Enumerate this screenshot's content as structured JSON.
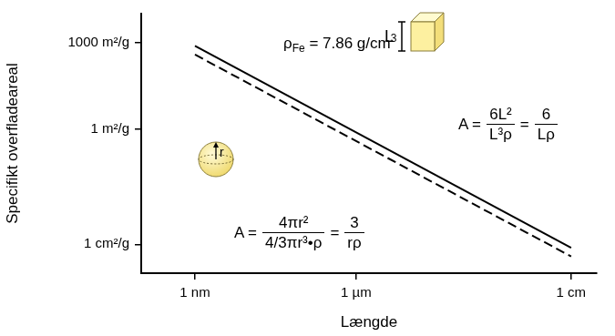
{
  "chart_data": {
    "type": "line",
    "x_label": "Længde",
    "y_label": "Specifikt overfladeareal",
    "x": [
      1e-09,
      0.01
    ],
    "series": [
      {
        "color": "#000000",
        "line_style": "solid",
        "values": [
          760,
          7.6e-05
        ]
      },
      {
        "color": "#000000",
        "line_style": "dashed",
        "values": [
          380,
          3.8e-05
        ]
      }
    ],
    "log": true,
    "xlim": [
      1e-10,
      0.03
    ],
    "xticks": [
      {
        "value": 1e-09,
        "label": "1 nm"
      },
      {
        "value": 1e-06,
        "label": "1 µm"
      },
      {
        "value": 0.01,
        "label": "1 cm"
      }
    ],
    "ylim": [
      1e-05,
      10000
    ],
    "yticks": [
      {
        "value": 0.0001,
        "label": "1 cm²/g"
      },
      {
        "value": 1,
        "label": "1 m²/g"
      },
      {
        "value": 1000,
        "label": "1000 m²/g"
      }
    ],
    "grid": false,
    "annotations": {
      "density": {
        "symbol": "ρ",
        "subscript": "Fe",
        "text": " = 7.86 g/cm",
        "superscript": "3"
      },
      "cube": {
        "dimension": "L",
        "parts": [
          "A =",
          {
            "numerator": "6L²",
            "denominator": "L³ρ"
          },
          "=",
          {
            "numerator": "6",
            "denominator": "Lρ"
          }
        ]
      },
      "sphere": {
        "dimension": "r",
        "parts": [
          "A =",
          {
            "numerator": "4πr²",
            "denominator": "4/3πr³•ρ"
          },
          "=",
          {
            "numerator": "3",
            "denominator": "rρ"
          }
        ]
      }
    }
  }
}
